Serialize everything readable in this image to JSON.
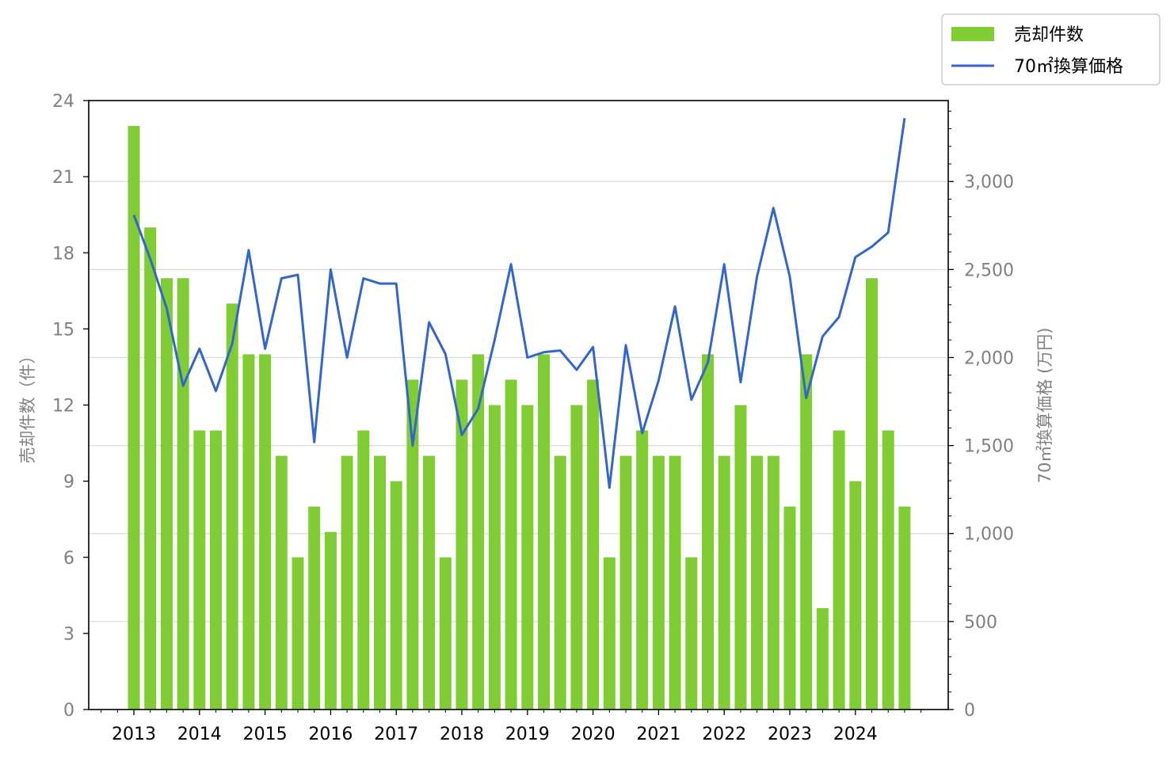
{
  "chart_data": {
    "type": "bar",
    "title": "",
    "xlabel": "",
    "ylabel": "売却件数（件）",
    "y2label": "70㎡換算価格 (万円)",
    "ylim": [
      0,
      24
    ],
    "y2lim": [
      0,
      3460
    ],
    "yticks": [
      "0",
      "3",
      "6",
      "9",
      "12",
      "15",
      "18",
      "21",
      "24"
    ],
    "y2ticks": [
      "0",
      "500",
      "1,000",
      "1,500",
      "2,000",
      "2,500",
      "3,000"
    ],
    "xticks": [
      "2013",
      "2014",
      "2015",
      "2016",
      "2017",
      "2018",
      "2019",
      "2020",
      "2021",
      "2022",
      "2023",
      "2024"
    ],
    "grid": "horizontal (right axis)",
    "legend": "top-right, outside plot",
    "colors": {
      "bars": "#7fcc33",
      "line": "#3366cc"
    },
    "series": [
      {
        "name": "売却件数",
        "type": "bar",
        "axis": "left",
        "values": [
          23,
          19,
          17,
          17,
          11,
          11,
          16,
          14,
          14,
          10,
          6,
          8,
          7,
          10,
          11,
          10,
          9,
          13,
          10,
          6,
          13,
          14,
          12,
          13,
          12,
          14,
          10,
          12,
          13,
          6,
          10,
          11,
          10,
          10,
          6,
          14,
          10,
          12,
          10,
          10,
          8,
          14,
          4,
          11,
          9,
          17,
          11,
          8
        ]
      },
      {
        "name": "70㎡換算価格",
        "type": "line",
        "axis": "right",
        "values": [
          2810,
          2560,
          2280,
          1840,
          2050,
          1810,
          2080,
          2610,
          2050,
          2450,
          2470,
          1520,
          2500,
          2000,
          2450,
          2420,
          2420,
          1500,
          2200,
          2020,
          1560,
          1710,
          2100,
          2530,
          2000,
          2030,
          2040,
          1930,
          2060,
          1260,
          2070,
          1570,
          1870,
          2290,
          1760,
          1970,
          2530,
          1860,
          2460,
          2850,
          2460,
          1770,
          2120,
          2230,
          2570,
          2630,
          2710,
          3360
        ]
      }
    ]
  }
}
